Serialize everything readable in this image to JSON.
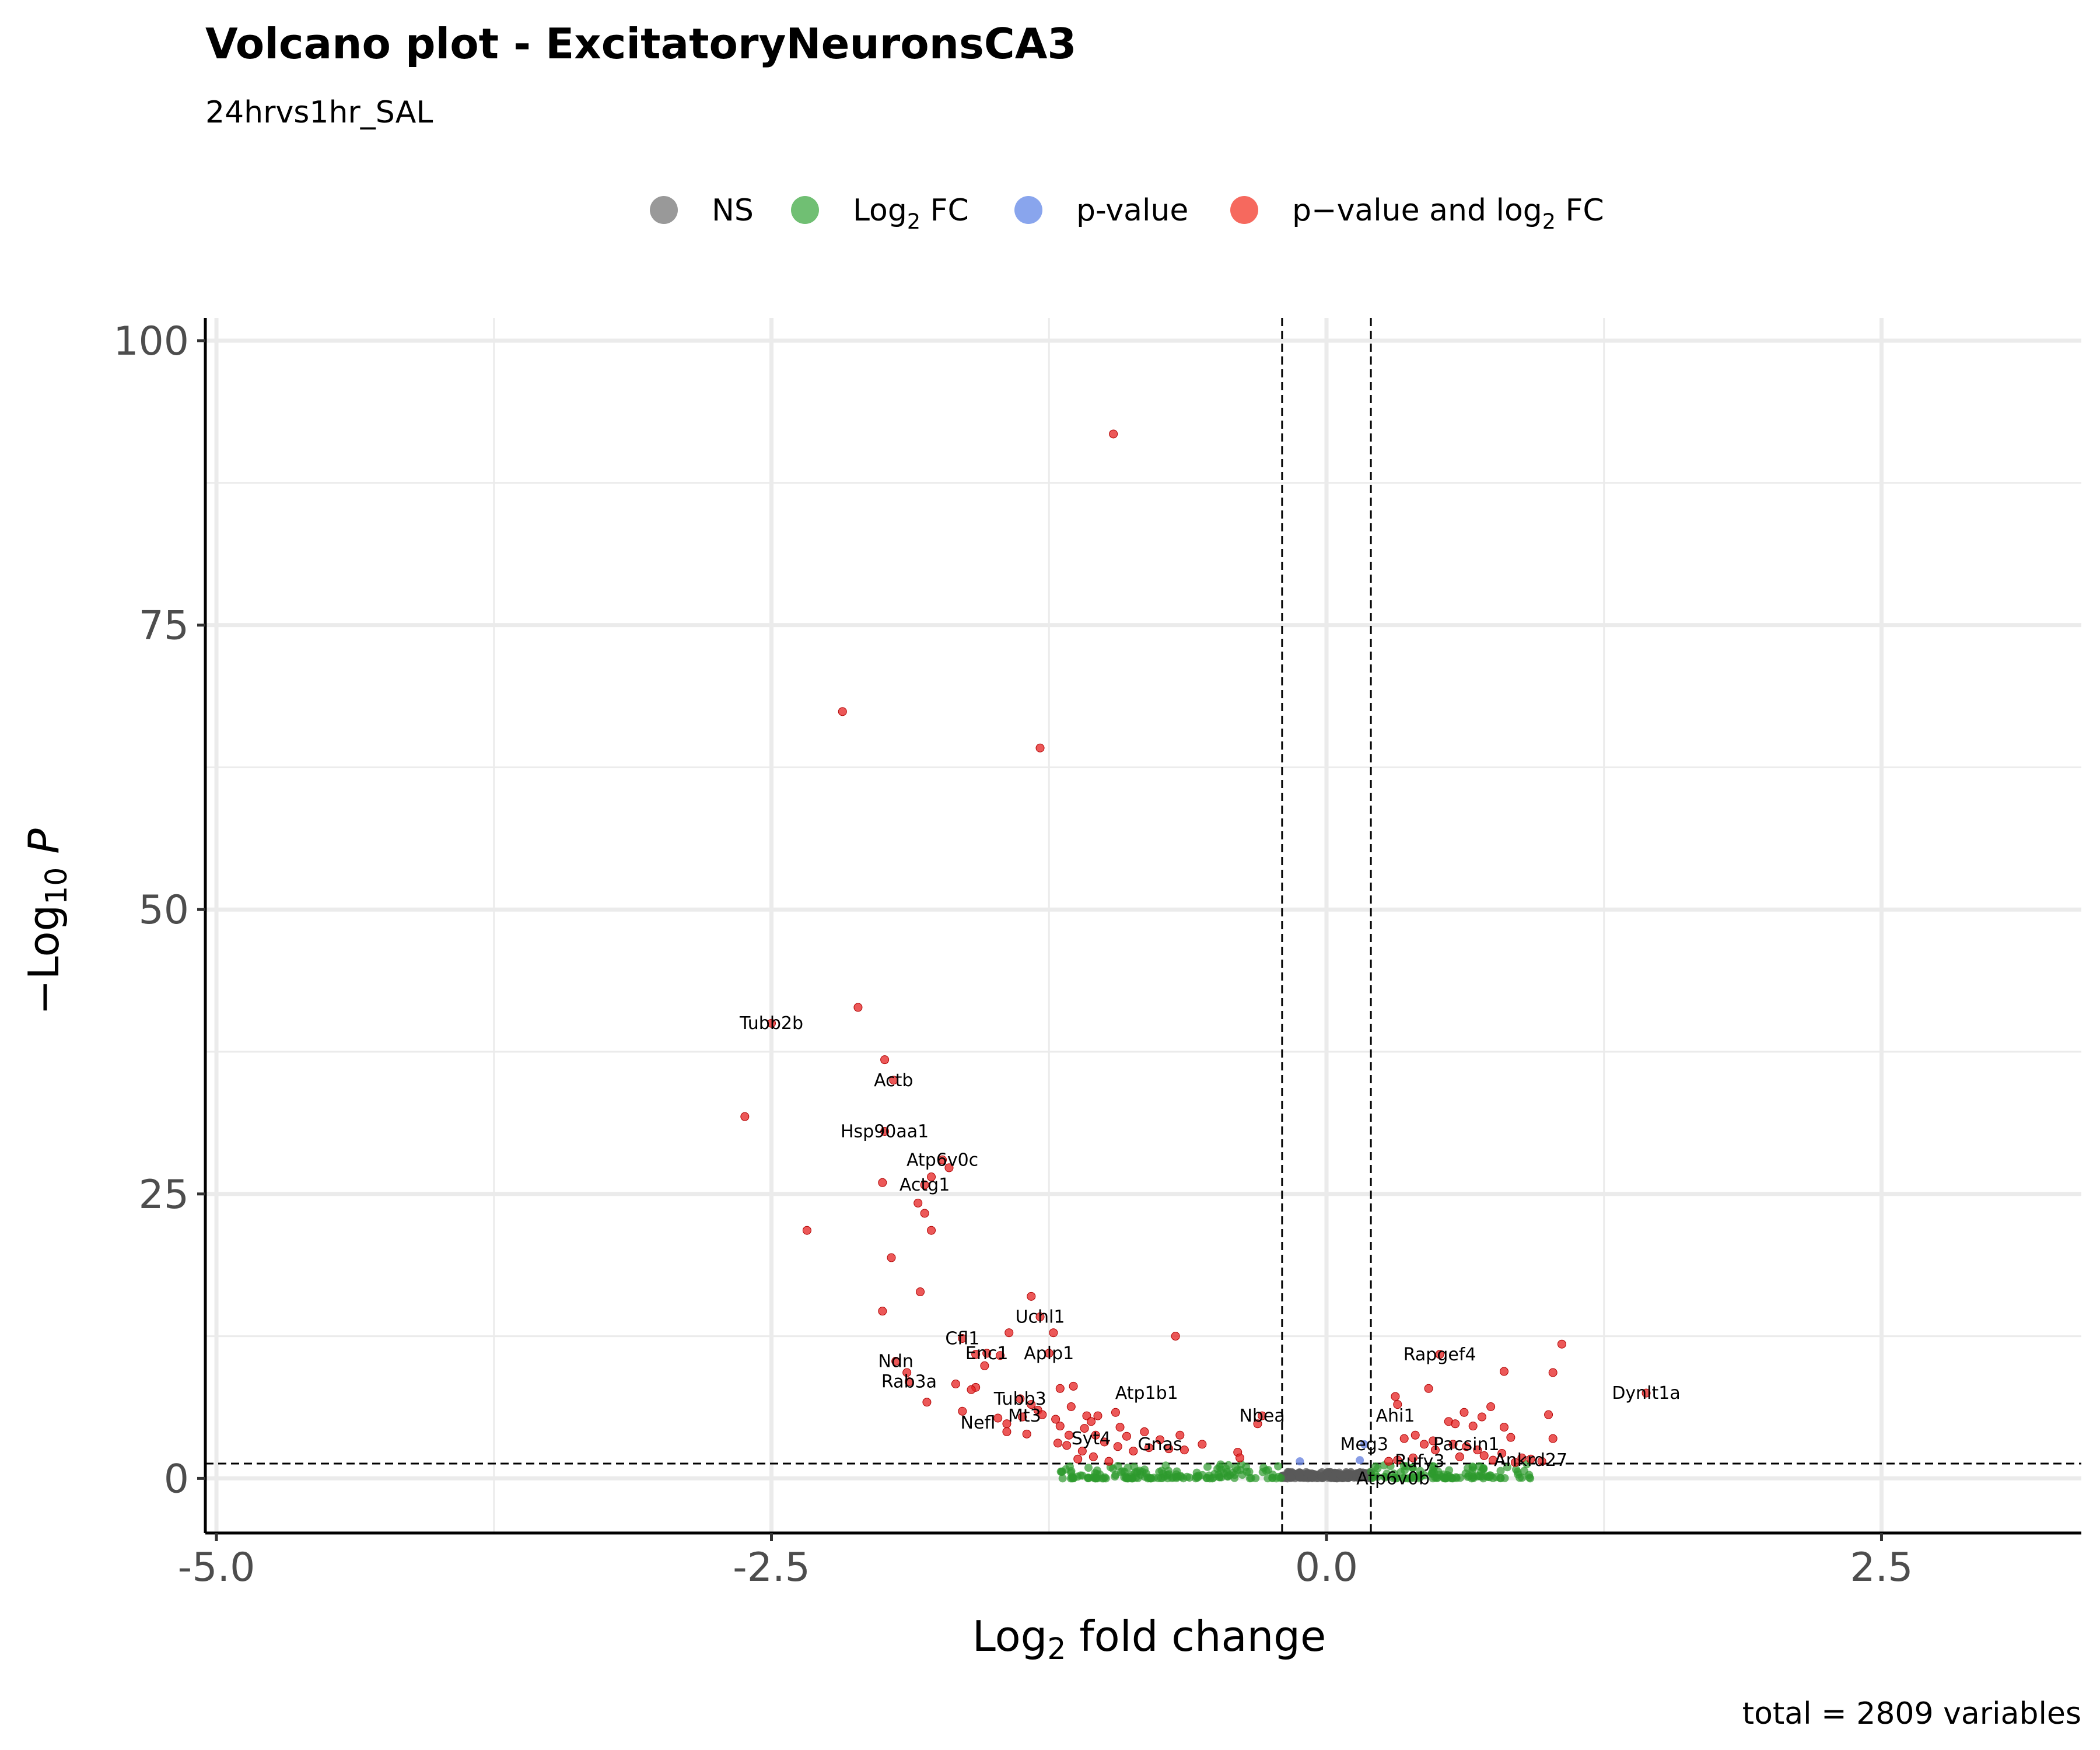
{
  "title": "Volcano plot - ExcitatoryNeuronsCA3",
  "subtitle": "24hrvs1hr_SAL",
  "caption": "total = 2809 variables",
  "legend": [
    {
      "base": "NS",
      "sub": "",
      "tail": "",
      "color": "#7f7f7f"
    },
    {
      "base": "Log",
      "sub": "2",
      "tail": " FC",
      "color": "#4caf50"
    },
    {
      "base": "p-value",
      "sub": "",
      "tail": "",
      "color": "#6b8ee8"
    },
    {
      "base": "p−value and log",
      "sub": "2",
      "tail": " FC",
      "color": "#f44336"
    }
  ],
  "colors": {
    "ns": "#5a5a5a",
    "fc": "#2e9a2e",
    "p": "#6a85e0",
    "both": "#e62020",
    "grid": "#ebebeb"
  },
  "chart_data": {
    "type": "scatter",
    "xlabel": {
      "base": "Log",
      "sub": "2",
      "tail": " fold change"
    },
    "ylabel": {
      "base": "−Log",
      "sub": "10",
      "tail": " P"
    },
    "xlim": [
      -5.05,
      3.4
    ],
    "ylim": [
      -4.8,
      102
    ],
    "xticks": [
      -5.0,
      -2.5,
      0.0,
      2.5
    ],
    "xtick_labels": [
      "-5.0",
      "-2.5",
      "0.0",
      "2.5"
    ],
    "yticks": [
      0,
      25,
      50,
      75,
      100
    ],
    "ytick_labels": [
      "0",
      "25",
      "50",
      "75",
      "100"
    ],
    "fc_cutoffs": [
      -0.2,
      0.2
    ],
    "p_cutoff_neglog10": 1.3,
    "grid": true,
    "legend_position": "top",
    "points_significant": [
      [
        -0.96,
        91.8
      ],
      [
        -2.18,
        67.4
      ],
      [
        -1.29,
        64.2
      ],
      [
        -2.11,
        41.4
      ],
      [
        -2.5,
        40.0
      ],
      [
        -1.99,
        36.8
      ],
      [
        -1.95,
        35.0
      ],
      [
        -2.62,
        31.8
      ],
      [
        -1.99,
        30.5
      ],
      [
        -1.73,
        28.0
      ],
      [
        -1.7,
        27.3
      ],
      [
        -1.78,
        26.5
      ],
      [
        -2.0,
        26.0
      ],
      [
        -1.81,
        25.8
      ],
      [
        -1.84,
        24.2
      ],
      [
        -1.81,
        23.3
      ],
      [
        -1.78,
        21.8
      ],
      [
        -2.34,
        21.8
      ],
      [
        -1.96,
        19.4
      ],
      [
        -1.83,
        16.4
      ],
      [
        -1.33,
        16.0
      ],
      [
        -2.0,
        14.7
      ],
      [
        -1.29,
        14.2
      ],
      [
        -1.43,
        12.8
      ],
      [
        -0.68,
        12.5
      ],
      [
        -1.64,
        12.3
      ],
      [
        -1.23,
        12.8
      ],
      [
        -1.58,
        10.9
      ],
      [
        -1.53,
        11.0
      ],
      [
        -1.25,
        11.0
      ],
      [
        -1.47,
        10.8
      ],
      [
        -1.94,
        10.3
      ],
      [
        -1.89,
        9.3
      ],
      [
        -1.54,
        9.9
      ],
      [
        -1.88,
        8.5
      ],
      [
        -1.58,
        8.0
      ],
      [
        -1.67,
        8.3
      ],
      [
        -1.6,
        7.8
      ],
      [
        -1.2,
        7.9
      ],
      [
        -1.14,
        8.1
      ],
      [
        -1.38,
        7.0
      ],
      [
        -1.8,
        6.7
      ],
      [
        -1.33,
        6.5
      ],
      [
        -1.3,
        6.0
      ],
      [
        -1.15,
        6.3
      ],
      [
        -1.28,
        5.6
      ],
      [
        -1.08,
        5.5
      ],
      [
        -1.48,
        5.3
      ],
      [
        -1.64,
        5.9
      ],
      [
        -1.37,
        5.4
      ],
      [
        -1.22,
        5.2
      ],
      [
        -1.06,
        5.0
      ],
      [
        -1.03,
        5.5
      ],
      [
        -0.95,
        5.8
      ],
      [
        -1.44,
        4.8
      ],
      [
        -1.2,
        4.6
      ],
      [
        -1.09,
        4.4
      ],
      [
        -0.93,
        4.5
      ],
      [
        -1.44,
        4.1
      ],
      [
        -1.35,
        3.9
      ],
      [
        -1.16,
        3.8
      ],
      [
        -1.04,
        3.8
      ],
      [
        -0.9,
        3.7
      ],
      [
        -0.82,
        4.1
      ],
      [
        -0.66,
        3.8
      ],
      [
        -0.75,
        3.4
      ],
      [
        -0.56,
        3.0
      ],
      [
        -1.21,
        3.1
      ],
      [
        -1.17,
        2.9
      ],
      [
        -1.0,
        3.2
      ],
      [
        -0.94,
        2.8
      ],
      [
        -0.87,
        2.4
      ],
      [
        -0.8,
        2.7
      ],
      [
        -0.71,
        2.6
      ],
      [
        -0.64,
        2.5
      ],
      [
        -1.1,
        2.4
      ],
      [
        -1.05,
        1.9
      ],
      [
        -1.12,
        1.7
      ],
      [
        -0.98,
        1.5
      ],
      [
        -0.4,
        2.3
      ],
      [
        -0.39,
        1.8
      ],
      [
        -0.29,
        5.5
      ],
      [
        -0.31,
        4.8
      ],
      [
        0.31,
        7.2
      ],
      [
        0.32,
        6.5
      ],
      [
        0.46,
        7.9
      ],
      [
        0.51,
        10.9
      ],
      [
        0.8,
        9.4
      ],
      [
        1.02,
        9.3
      ],
      [
        1.06,
        11.8
      ],
      [
        0.35,
        3.5
      ],
      [
        0.4,
        3.8
      ],
      [
        0.44,
        3.0
      ],
      [
        0.49,
        2.5
      ],
      [
        0.55,
        5.0
      ],
      [
        0.58,
        4.8
      ],
      [
        0.62,
        5.8
      ],
      [
        0.66,
        4.6
      ],
      [
        0.7,
        5.4
      ],
      [
        0.74,
        6.3
      ],
      [
        0.8,
        4.5
      ],
      [
        0.83,
        3.6
      ],
      [
        0.68,
        2.5
      ],
      [
        0.71,
        2.0
      ],
      [
        0.79,
        2.2
      ],
      [
        0.88,
        1.8
      ],
      [
        0.92,
        1.7
      ],
      [
        0.97,
        1.5
      ],
      [
        0.85,
        1.4
      ],
      [
        0.6,
        1.9
      ],
      [
        0.39,
        1.8
      ],
      [
        0.28,
        1.5
      ],
      [
        0.32,
        1.6
      ],
      [
        1.0,
        5.6
      ],
      [
        1.02,
        3.5
      ],
      [
        1.44,
        7.5
      ],
      [
        0.48,
        3.3
      ],
      [
        0.57,
        3.0
      ],
      [
        0.63,
        2.8
      ],
      [
        0.75,
        1.6
      ]
    ],
    "points_pvalue": [
      [
        0.17,
        3.0
      ],
      [
        -0.12,
        1.5
      ],
      [
        0.15,
        1.6
      ]
    ],
    "labels": [
      {
        "text": "Tubb2b",
        "x": -2.5,
        "y": 40.0
      },
      {
        "text": "Actb",
        "x": -1.95,
        "y": 35.0
      },
      {
        "text": "Hsp90aa1",
        "x": -1.99,
        "y": 30.5
      },
      {
        "text": "Atp6v0c",
        "x": -1.73,
        "y": 28.0
      },
      {
        "text": "Actg1",
        "x": -1.81,
        "y": 25.8
      },
      {
        "text": "Uchl1",
        "x": -1.29,
        "y": 14.2
      },
      {
        "text": "Cfl1",
        "x": -1.64,
        "y": 12.3
      },
      {
        "text": "Enc1",
        "x": -1.53,
        "y": 11.0
      },
      {
        "text": "Aplp1",
        "x": -1.25,
        "y": 11.0
      },
      {
        "text": "Ndn",
        "x": -1.94,
        "y": 10.3
      },
      {
        "text": "Rab3a",
        "x": -1.88,
        "y": 8.5
      },
      {
        "text": "Tubb3",
        "x": -1.38,
        "y": 7.0
      },
      {
        "text": "Atp1b1",
        "x": -0.81,
        "y": 7.5
      },
      {
        "text": "Mt3",
        "x": -1.36,
        "y": 5.5
      },
      {
        "text": "Nefl",
        "x": -1.57,
        "y": 4.9
      },
      {
        "text": "Nbea",
        "x": -0.29,
        "y": 5.5
      },
      {
        "text": "Syt4",
        "x": -1.06,
        "y": 3.5
      },
      {
        "text": "Gnas",
        "x": -0.75,
        "y": 3.0
      },
      {
        "text": "Rapgef4",
        "x": 0.51,
        "y": 10.9
      },
      {
        "text": "Dynlt1a",
        "x": 1.44,
        "y": 7.5
      },
      {
        "text": "Ahi1",
        "x": 0.31,
        "y": 5.5
      },
      {
        "text": "Meg3",
        "x": 0.17,
        "y": 3.0
      },
      {
        "text": "Pacsin1",
        "x": 0.63,
        "y": 3.0
      },
      {
        "text": "Rufy3",
        "x": 0.42,
        "y": 1.5
      },
      {
        "text": "Ankrd27",
        "x": 0.92,
        "y": 1.6
      },
      {
        "text": "Atp6v0b",
        "x": 0.3,
        "y": 0.0
      }
    ]
  }
}
